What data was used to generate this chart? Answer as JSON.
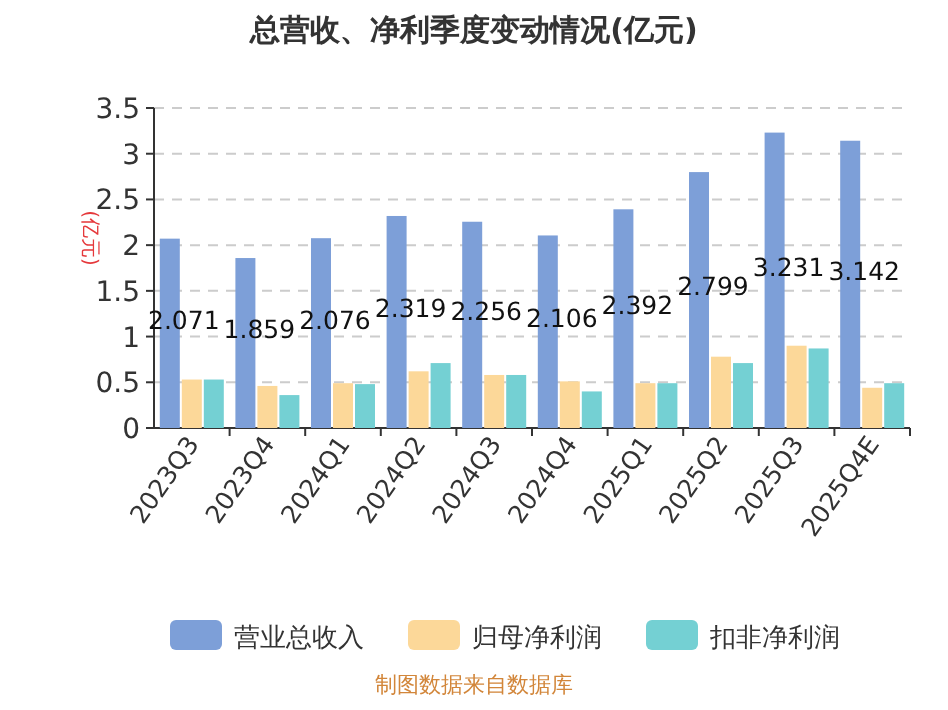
{
  "chart_data": {
    "type": "bar",
    "title": "总营收、净利季度变动情况(亿元)",
    "ylabel": "(亿元)",
    "categories": [
      "2023Q3",
      "2023Q4",
      "2024Q1",
      "2024Q2",
      "2024Q3",
      "2024Q4",
      "2025Q1",
      "2025Q2",
      "2025Q3",
      "2025Q4E"
    ],
    "series": [
      {
        "name": "营业总收入",
        "color": "#7d9fd8",
        "values": [
          2.071,
          1.859,
          2.076,
          2.319,
          2.256,
          2.106,
          2.392,
          2.799,
          3.231,
          3.142
        ],
        "data_labels": true
      },
      {
        "name": "归母净利润",
        "color": "#fcd899",
        "values": [
          0.53,
          0.46,
          0.49,
          0.62,
          0.58,
          0.51,
          0.49,
          0.78,
          0.9,
          0.44
        ]
      },
      {
        "name": "扣非净利润",
        "color": "#74d0d3",
        "values": [
          0.53,
          0.36,
          0.48,
          0.71,
          0.58,
          0.4,
          0.49,
          0.71,
          0.87,
          0.49
        ]
      }
    ],
    "ylim": [
      0,
      3.5
    ],
    "yticks": [
      0,
      0.5,
      1,
      1.5,
      2,
      2.5,
      3,
      3.5
    ],
    "grid": "y",
    "legend": "bottom",
    "annotations": [
      "制图数据来自数据库"
    ]
  }
}
